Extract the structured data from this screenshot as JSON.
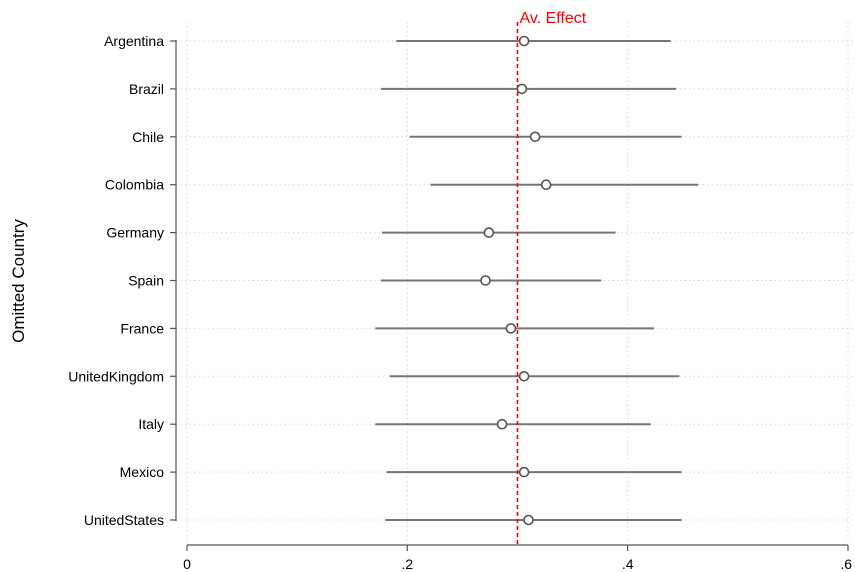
{
  "chart_data": {
    "type": "scatter",
    "ylabel": "Omitted Country",
    "xlabel": "",
    "xlim": [
      0,
      0.6
    ],
    "x_ticks": [
      0,
      0.2,
      0.4,
      0.6
    ],
    "x_tick_labels": [
      "0",
      ".2",
      ".4",
      ".6"
    ],
    "grid": true,
    "categories": [
      "Argentina",
      "Brazil",
      "Chile",
      "Colombia",
      "Germany",
      "Spain",
      "France",
      "UnitedKingdom",
      "Italy",
      "Mexico",
      "UnitedStates"
    ],
    "estimates": [
      0.306,
      0.304,
      0.316,
      0.326,
      0.274,
      0.271,
      0.294,
      0.306,
      0.286,
      0.306,
      0.31
    ],
    "ci_low": [
      0.19,
      0.176,
      0.202,
      0.221,
      0.177,
      0.176,
      0.171,
      0.184,
      0.171,
      0.181,
      0.18
    ],
    "ci_high": [
      0.439,
      0.444,
      0.449,
      0.464,
      0.389,
      0.376,
      0.424,
      0.447,
      0.421,
      0.449,
      0.449
    ],
    "reference_line": {
      "value": 0.3,
      "label": "Av. Effect",
      "color": "#ff0000",
      "style": "dashed"
    },
    "colors": {
      "ci": "#757575",
      "marker": "#555555",
      "grid": "#d9d9d9",
      "axis": "#555555"
    }
  }
}
